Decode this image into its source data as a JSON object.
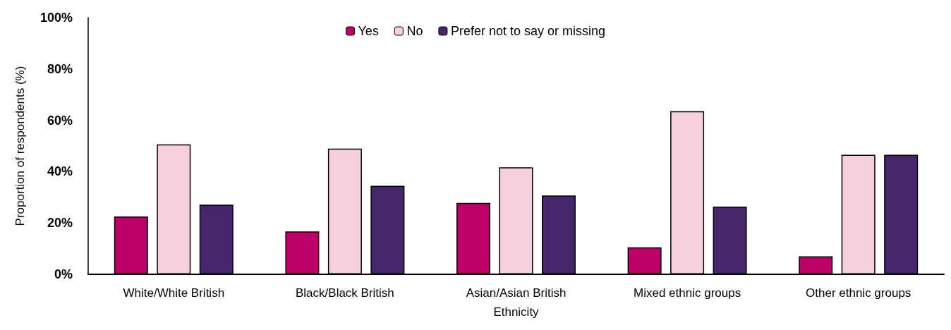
{
  "chart_data": {
    "type": "bar",
    "xlabel": "Ethnicity",
    "ylabel": "Proportion of respondents (%)",
    "categories": [
      "White/White British",
      "Black/Black British",
      "Asian/Asian British",
      "Mixed ethnic groups",
      "Other ethnic groups"
    ],
    "series": [
      {
        "name": "Yes",
        "color": "#bf006b",
        "values": [
          22.5,
          16.7,
          27.8,
          10.5,
          7.0
        ]
      },
      {
        "name": "No",
        "color": "#f5cfdb",
        "values": [
          50.6,
          49.0,
          41.7,
          63.5,
          46.6
        ]
      },
      {
        "name": "Prefer not to say or missing",
        "color": "#46276e",
        "values": [
          27.1,
          34.5,
          30.7,
          26.4,
          46.6
        ]
      }
    ],
    "ylim": [
      0,
      100
    ],
    "yticks": [
      {
        "value": 0,
        "label": "0%"
      },
      {
        "value": 20,
        "label": "20%"
      },
      {
        "value": 40,
        "label": "40%"
      },
      {
        "value": 60,
        "label": "60%"
      },
      {
        "value": 80,
        "label": "80%"
      },
      {
        "value": 100,
        "label": "100%"
      }
    ],
    "grid": false,
    "legend": "top"
  }
}
